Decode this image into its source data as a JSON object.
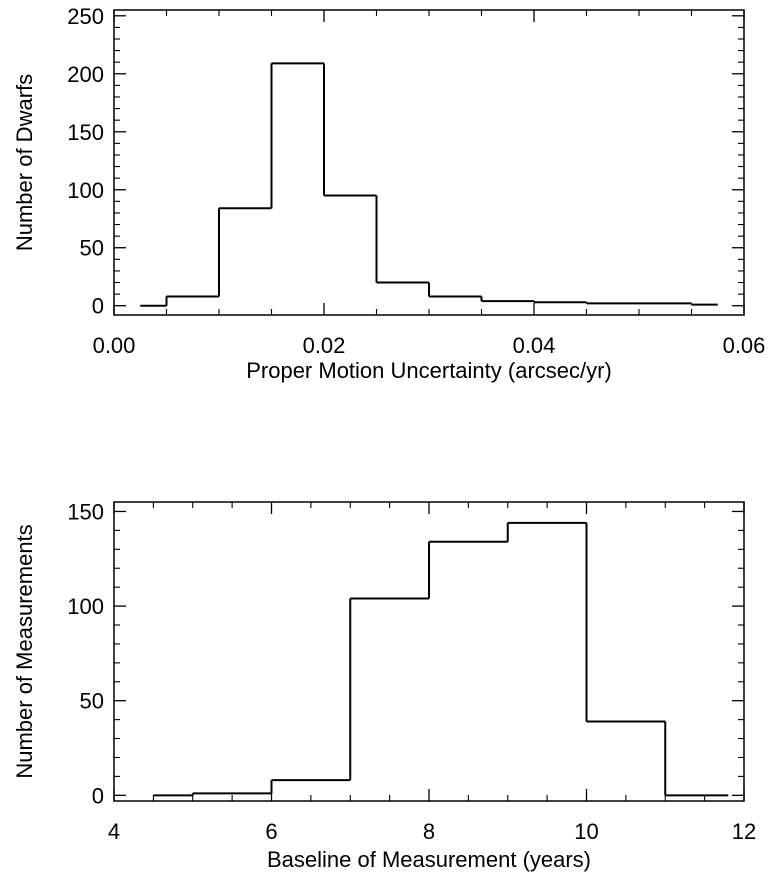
{
  "chart_data": [
    {
      "type": "bar",
      "style": "step-histogram",
      "xlabel": "Proper Motion Uncertainty (arcsec/yr)",
      "ylabel": "Number of Dwarfs",
      "xlim": [
        0.0,
        0.06
      ],
      "ylim": [
        -8,
        255
      ],
      "x_ticks": [
        0.0,
        0.02,
        0.04,
        0.06
      ],
      "x_tick_labels": [
        "0.00",
        "0.02",
        "0.04",
        "0.06"
      ],
      "y_ticks": [
        0,
        50,
        100,
        150,
        200,
        250
      ],
      "y_tick_labels": [
        "0",
        "50",
        "100",
        "150",
        "200",
        "250"
      ],
      "bin_edges": [
        0.0025,
        0.005,
        0.01,
        0.015,
        0.02,
        0.025,
        0.03,
        0.035,
        0.04,
        0.045,
        0.05,
        0.055,
        0.0575
      ],
      "values": [
        0,
        8,
        84,
        209,
        95,
        20,
        8,
        4,
        3,
        2,
        2,
        1
      ],
      "grid": false
    },
    {
      "type": "bar",
      "style": "step-histogram",
      "xlabel": "Baseline of Measurement (years)",
      "ylabel": "Number of Measurements",
      "xlim": [
        4,
        12
      ],
      "ylim": [
        -3,
        155
      ],
      "x_ticks": [
        4,
        6,
        8,
        10,
        12
      ],
      "x_tick_labels": [
        "4",
        "6",
        "8",
        "10",
        "12"
      ],
      "y_ticks": [
        0,
        50,
        100,
        150
      ],
      "y_tick_labels": [
        "0",
        "50",
        "100",
        "150"
      ],
      "bin_edges": [
        4.5,
        5,
        6,
        7,
        8,
        9,
        10,
        11,
        11.8
      ],
      "values": [
        0,
        1,
        8,
        104,
        134,
        144,
        39,
        0
      ],
      "grid": false
    }
  ]
}
